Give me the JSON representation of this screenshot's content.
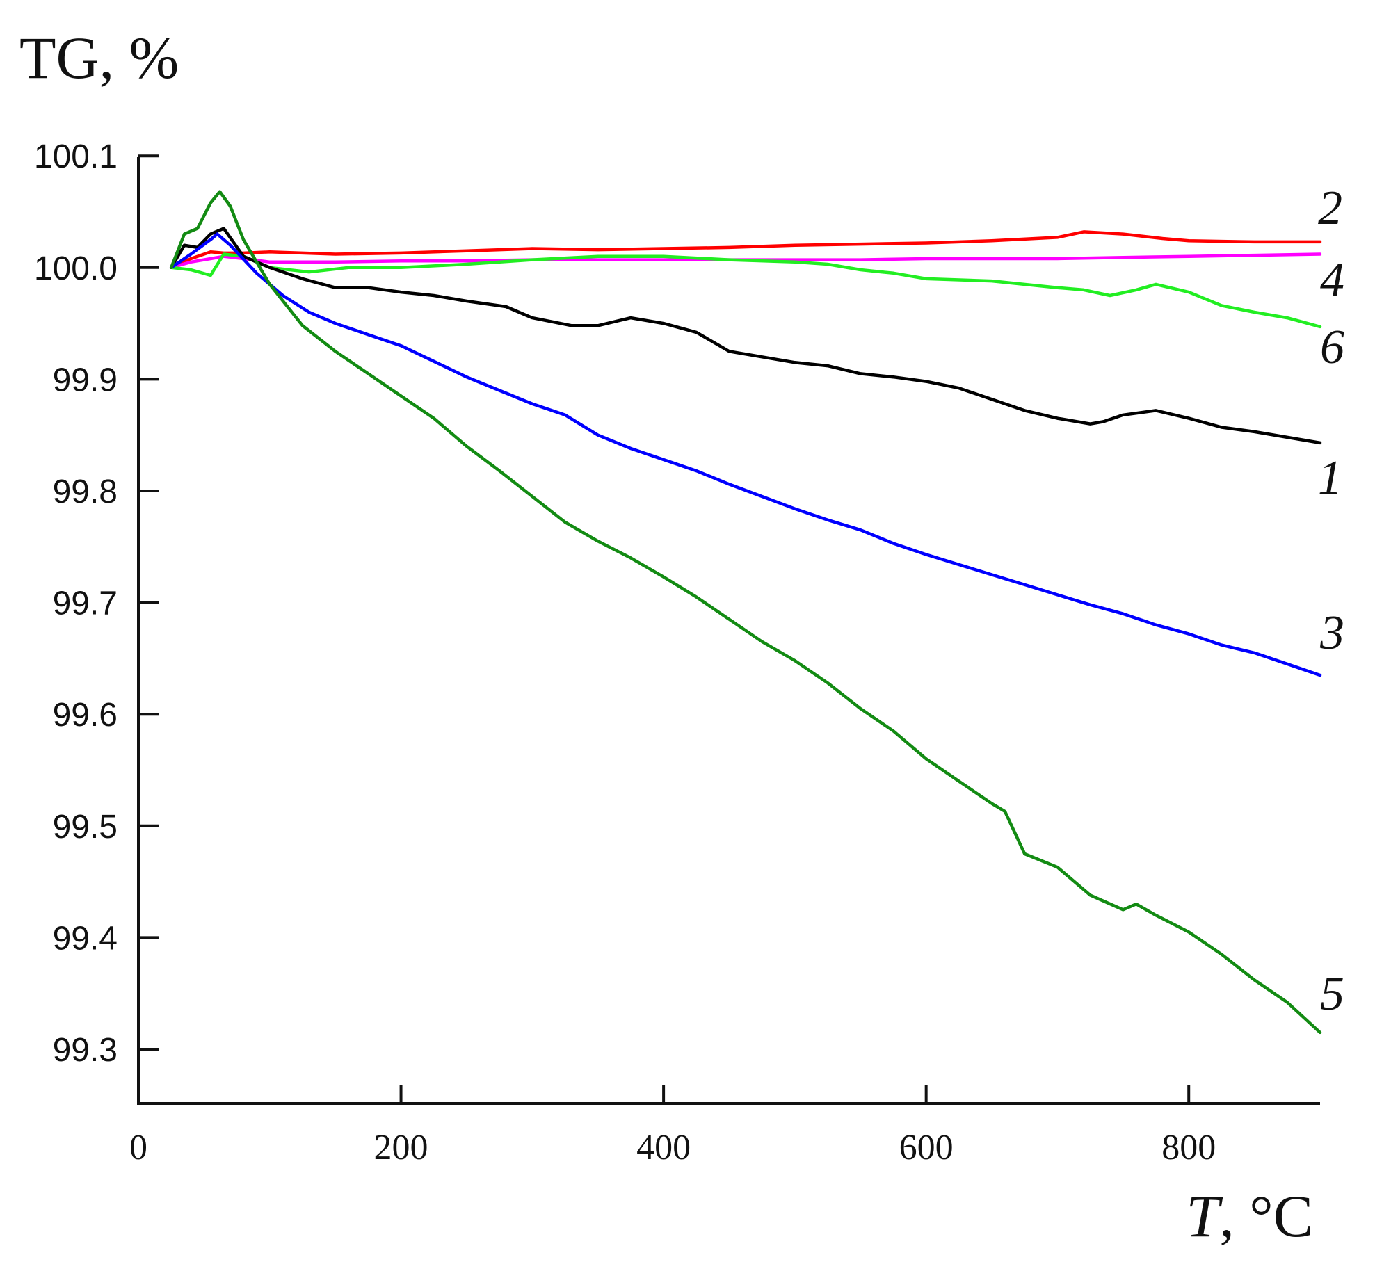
{
  "chart_data": {
    "type": "line",
    "title": "",
    "ylabel": "TG, %",
    "xlabel_var": "T",
    "xlabel_unit": ", °C",
    "xlim": [
      0,
      900
    ],
    "ylim": [
      99.25,
      100.1
    ],
    "xticks": [
      0,
      200,
      400,
      600,
      800
    ],
    "xtick_labels": [
      "0",
      "200",
      "400",
      "600",
      "800"
    ],
    "yticks": [
      99.3,
      99.4,
      99.5,
      99.6,
      99.7,
      99.8,
      99.9,
      100.0,
      100.1
    ],
    "ytick_labels": [
      "99.3",
      "99.4",
      "99.5",
      "99.6",
      "99.7",
      "99.8",
      "99.9",
      "100.0",
      "100.1"
    ],
    "grid": false,
    "series": [
      {
        "name": "1",
        "color": "#000000",
        "x": [
          25,
          35,
          45,
          55,
          65,
          80,
          100,
          125,
          150,
          175,
          200,
          225,
          250,
          280,
          300,
          330,
          350,
          375,
          400,
          425,
          450,
          475,
          500,
          525,
          550,
          575,
          600,
          625,
          650,
          675,
          700,
          725,
          735,
          750,
          775,
          800,
          825,
          850,
          875,
          900
        ],
        "y": [
          100.0,
          100.02,
          100.018,
          100.03,
          100.035,
          100.01,
          100.0,
          99.99,
          99.982,
          99.982,
          99.978,
          99.975,
          99.97,
          99.965,
          99.955,
          99.948,
          99.948,
          99.955,
          99.95,
          99.942,
          99.925,
          99.92,
          99.915,
          99.912,
          99.905,
          99.902,
          99.898,
          99.892,
          99.882,
          99.872,
          99.865,
          99.86,
          99.862,
          99.868,
          99.872,
          99.865,
          99.857,
          99.853,
          99.848,
          99.843
        ]
      },
      {
        "name": "2",
        "color": "#ff0000",
        "x": [
          25,
          40,
          55,
          65,
          80,
          100,
          150,
          200,
          250,
          300,
          350,
          400,
          450,
          500,
          550,
          600,
          650,
          700,
          720,
          750,
          780,
          800,
          850,
          900
        ],
        "y": [
          100.0,
          100.008,
          100.014,
          100.013,
          100.013,
          100.014,
          100.012,
          100.013,
          100.015,
          100.017,
          100.016,
          100.017,
          100.018,
          100.02,
          100.021,
          100.022,
          100.024,
          100.027,
          100.032,
          100.03,
          100.026,
          100.024,
          100.023,
          100.023
        ]
      },
      {
        "name": "3",
        "color": "#0000ff",
        "x": [
          25,
          40,
          55,
          60,
          70,
          90,
          110,
          130,
          150,
          175,
          200,
          225,
          250,
          275,
          300,
          325,
          350,
          375,
          400,
          425,
          450,
          475,
          500,
          525,
          550,
          575,
          600,
          625,
          650,
          675,
          700,
          725,
          750,
          775,
          800,
          825,
          850,
          875,
          900
        ],
        "y": [
          100.0,
          100.012,
          100.025,
          100.03,
          100.02,
          99.995,
          99.975,
          99.96,
          99.95,
          99.94,
          99.93,
          99.916,
          99.902,
          99.89,
          99.878,
          99.868,
          99.85,
          99.838,
          99.828,
          99.818,
          99.806,
          99.795,
          99.784,
          99.774,
          99.765,
          99.753,
          99.743,
          99.734,
          99.725,
          99.716,
          99.707,
          99.698,
          99.69,
          99.68,
          99.672,
          99.662,
          99.655,
          99.645,
          99.635
        ]
      },
      {
        "name": "4",
        "color": "#ff00ff",
        "x": [
          25,
          40,
          55,
          65,
          80,
          100,
          150,
          200,
          250,
          300,
          350,
          400,
          450,
          500,
          550,
          600,
          650,
          700,
          750,
          800,
          850,
          900
        ],
        "y": [
          100.0,
          100.005,
          100.008,
          100.01,
          100.008,
          100.005,
          100.005,
          100.006,
          100.006,
          100.007,
          100.007,
          100.007,
          100.007,
          100.007,
          100.007,
          100.008,
          100.008,
          100.008,
          100.009,
          100.01,
          100.011,
          100.012
        ]
      },
      {
        "name": "5",
        "color": "#138b13",
        "x": [
          25,
          35,
          45,
          55,
          62,
          70,
          80,
          100,
          125,
          150,
          175,
          200,
          225,
          250,
          275,
          300,
          325,
          350,
          375,
          400,
          425,
          450,
          475,
          500,
          525,
          550,
          575,
          600,
          625,
          650,
          660,
          675,
          700,
          725,
          750,
          760,
          775,
          800,
          825,
          850,
          875,
          900
        ],
        "y": [
          100.0,
          100.03,
          100.035,
          100.058,
          100.068,
          100.055,
          100.025,
          99.985,
          99.948,
          99.925,
          99.905,
          99.885,
          99.865,
          99.84,
          99.818,
          99.795,
          99.772,
          99.755,
          99.74,
          99.723,
          99.705,
          99.685,
          99.665,
          99.648,
          99.628,
          99.605,
          99.585,
          99.56,
          99.54,
          99.52,
          99.513,
          99.475,
          99.463,
          99.438,
          99.425,
          99.43,
          99.42,
          99.405,
          99.385,
          99.362,
          99.342,
          99.315
        ]
      },
      {
        "name": "6",
        "color": "#22ee22",
        "x": [
          25,
          40,
          55,
          65,
          80,
          100,
          130,
          160,
          200,
          250,
          300,
          350,
          400,
          450,
          500,
          525,
          550,
          575,
          600,
          650,
          700,
          720,
          740,
          760,
          775,
          800,
          825,
          850,
          875,
          900
        ],
        "y": [
          100.0,
          99.998,
          99.993,
          100.012,
          100.01,
          100.0,
          99.996,
          100.0,
          100.0,
          100.003,
          100.007,
          100.01,
          100.01,
          100.007,
          100.005,
          100.003,
          99.998,
          99.995,
          99.99,
          99.988,
          99.982,
          99.98,
          99.975,
          99.98,
          99.985,
          99.978,
          99.966,
          99.96,
          99.955,
          99.947
        ]
      }
    ],
    "series_labels": [
      {
        "text": "1",
        "series": "1"
      },
      {
        "text": "2",
        "series": "2"
      },
      {
        "text": "3",
        "series": "3"
      },
      {
        "text": "4",
        "series": "4"
      },
      {
        "text": "5",
        "series": "5"
      },
      {
        "text": "6",
        "series": "6"
      }
    ]
  }
}
